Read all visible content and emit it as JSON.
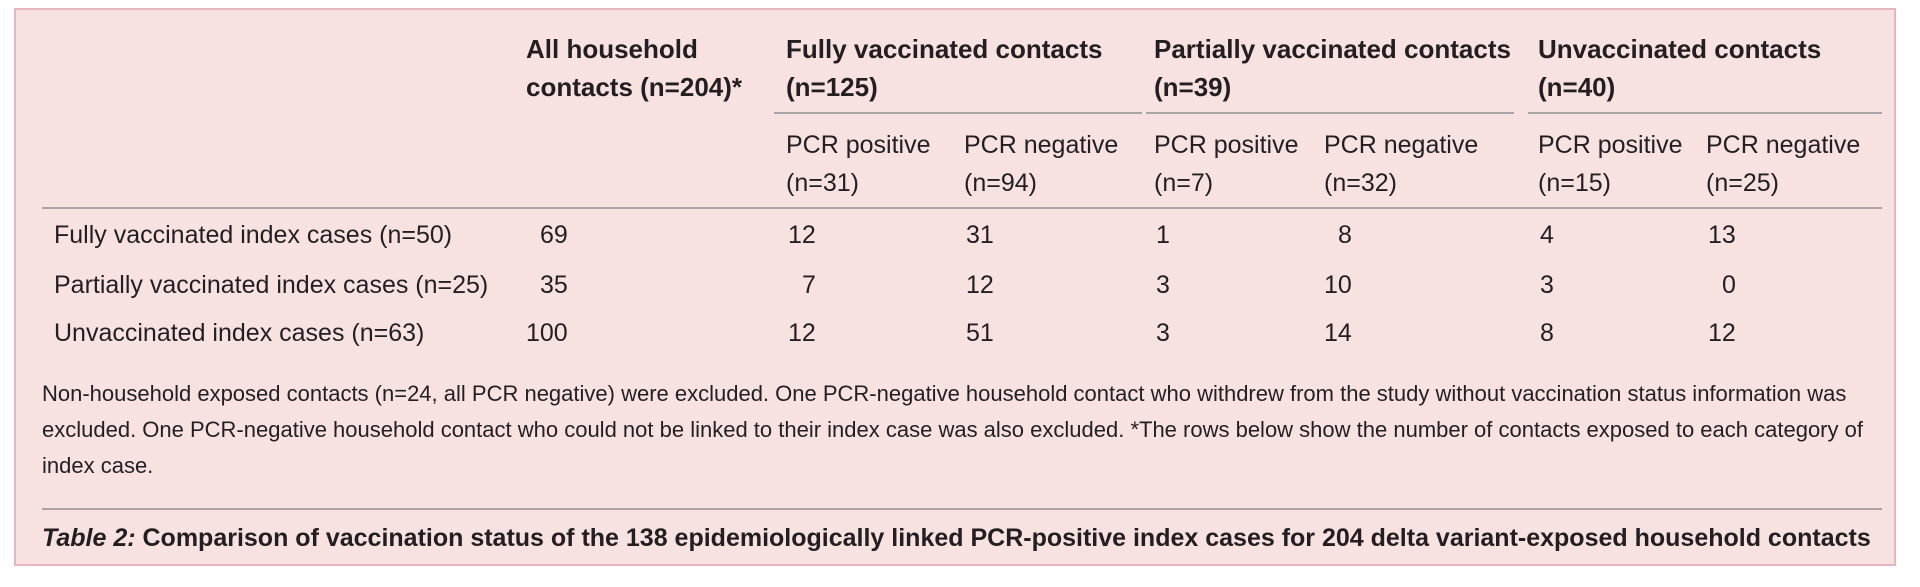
{
  "table": {
    "col_groups": [
      {
        "label_line1": "All household",
        "label_line2": "contacts (n=204)*"
      },
      {
        "label_line1": "Fully vaccinated contacts",
        "label_line2": "(n=125)"
      },
      {
        "label_line1": "Partially vaccinated contacts",
        "label_line2": "(n=39)"
      },
      {
        "label_line1": "Unvaccinated contacts",
        "label_line2": "(n=40)"
      }
    ],
    "subheaders": [
      {
        "line1": "PCR positive",
        "line2": "(n=31)"
      },
      {
        "line1": "PCR negative",
        "line2": "(n=94)"
      },
      {
        "line1": "PCR positive",
        "line2": "(n=7)"
      },
      {
        "line1": "PCR negative",
        "line2": "(n=32)"
      },
      {
        "line1": "PCR positive",
        "line2": "(n=15)"
      },
      {
        "line1": "PCR negative",
        "line2": "(n=25)"
      }
    ],
    "rows": [
      {
        "label": "Fully vaccinated index cases (n=50)",
        "cells": [
          "69",
          "12",
          "31",
          "1",
          "8",
          "4",
          "13"
        ]
      },
      {
        "label": "Partially vaccinated index cases (n=25)",
        "cells": [
          "35",
          "7",
          "12",
          "3",
          "10",
          "3",
          "0"
        ]
      },
      {
        "label": "Unvaccinated index cases (n=63)",
        "cells": [
          "100",
          "12",
          "51",
          "3",
          "14",
          "8",
          "12"
        ]
      }
    ]
  },
  "footnote": "Non-household exposed contacts (n=24, all PCR negative) were excluded. One PCR-negative household contact who withdrew from the study without vaccination status information was excluded. One PCR-negative household contact who could not be linked to their index case was also excluded. *The rows below show the number of contacts exposed to each category of index case.",
  "caption": {
    "label": "Table 2:",
    "text": "Comparison of vaccination status of the 138 epidemiologically linked PCR-positive index cases for 204 delta variant-exposed household contacts"
  }
}
